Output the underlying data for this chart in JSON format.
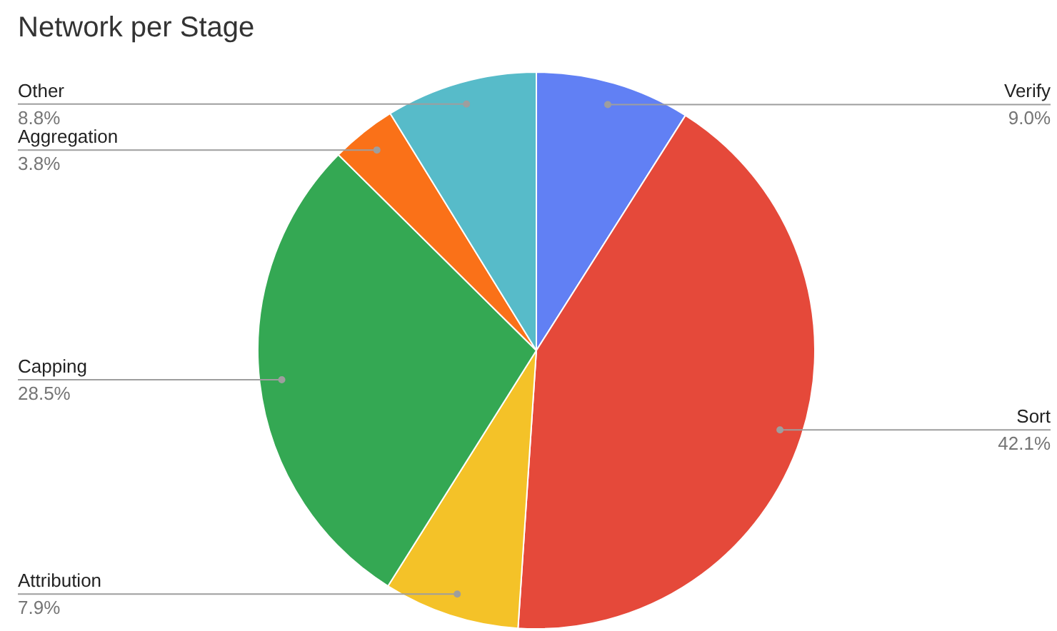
{
  "chart_data": {
    "type": "pie",
    "title": "Network per Stage",
    "categories": [
      "Verify",
      "Sort",
      "Attribution",
      "Capping",
      "Aggregation",
      "Other"
    ],
    "values": [
      9.0,
      42.1,
      7.9,
      28.5,
      3.8,
      8.8
    ],
    "value_labels": [
      "9.0%",
      "42.1%",
      "7.9%",
      "28.5%",
      "3.8%",
      "8.8%"
    ],
    "colors": [
      "#6180f4",
      "#e5493a",
      "#f4c228",
      "#34a853",
      "#fa7118",
      "#57bbc9"
    ]
  }
}
